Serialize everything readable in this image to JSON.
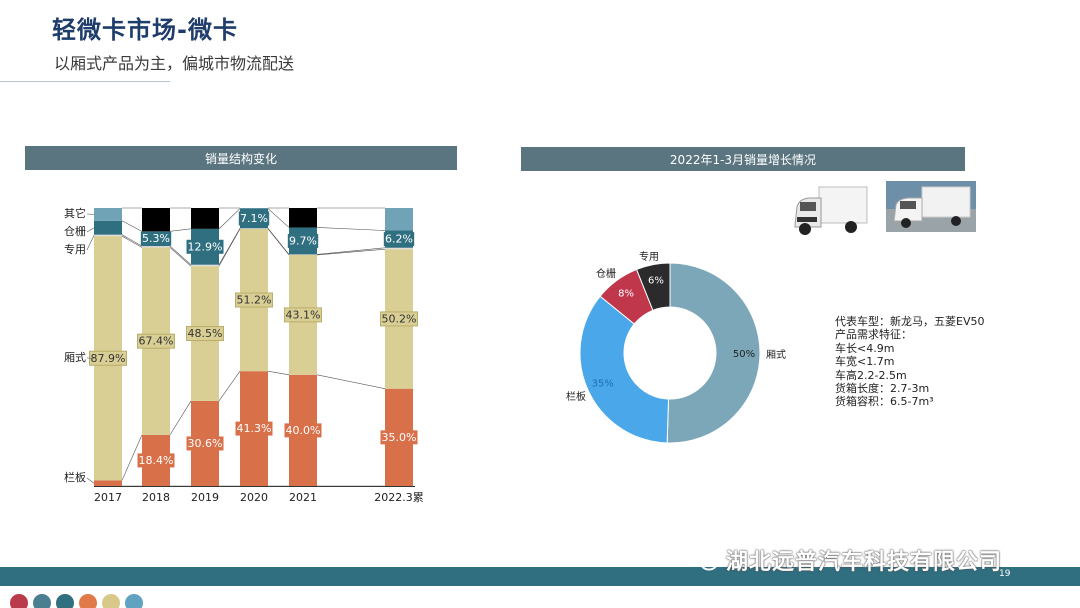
{
  "header": {
    "title": "轻微卡市场-微卡",
    "subtitle": "以厢式产品为主，偏城市物流配送"
  },
  "left_panel": {
    "header": "销量结构变化"
  },
  "right_panel": {
    "header": "2022年1-3月销量增长情况"
  },
  "info": {
    "lines": [
      "代表车型：新龙马，五菱EV50",
      "产品需求特征：",
      "车长<4.9m",
      "车宽<1.7m",
      "车高2.2-2.5m",
      "货箱长度：2.7-3m",
      "货箱容积：6.5-7m³"
    ]
  },
  "footer": {
    "page_number": "19",
    "watermark": "湖北远普汽车科技有限公司"
  },
  "colors": {
    "title": "#1f3d6b",
    "header_band": "#5b7580",
    "footer_band": "#2f6f80",
    "dots": [
      "#b93a4a",
      "#4a7f92",
      "#2f6f80",
      "#e07a48",
      "#d8c98a",
      "#5fa3c0"
    ]
  },
  "chart_data": [
    {
      "type": "bar",
      "stacked": true,
      "normalized": true,
      "title": "销量结构变化",
      "categories": [
        "2017",
        "2018",
        "2019",
        "2020",
        "2021",
        "2022.3累"
      ],
      "series": [
        {
          "name": "栏板",
          "color": "#d8704a",
          "values": [
            2.0,
            18.4,
            30.6,
            41.3,
            40.0,
            35.0
          ],
          "labels": [
            "",
            "18.4%",
            "30.6%",
            "41.3%",
            "40.0%",
            "35.0%"
          ]
        },
        {
          "name": "厢式",
          "color": "#d9cf95",
          "values": [
            87.9,
            67.4,
            48.5,
            51.2,
            43.1,
            50.2
          ],
          "labels": [
            "87.9%",
            "67.4%",
            "48.5%",
            "51.2%",
            "43.1%",
            "50.2%"
          ]
        },
        {
          "name": "专用",
          "color": "#dedede",
          "values": [
            0.5,
            0.5,
            0.5,
            0.2,
            0.2,
            0.5
          ],
          "labels": [
            "",
            "",
            "",
            "",
            "",
            ""
          ]
        },
        {
          "name": "仓栅",
          "color": "#2f6f80",
          "values": [
            5.0,
            5.3,
            12.9,
            7.1,
            9.7,
            6.2
          ],
          "labels": [
            "",
            "5.3%",
            "12.9%",
            "7.1%",
            "9.7%",
            "6.2%"
          ]
        },
        {
          "name": "其它",
          "color": "#6fa3b5",
          "values": [
            4.6,
            8.4,
            7.5,
            0.2,
            7.0,
            8.1
          ],
          "labels": [
            "",
            "",
            "",
            "",
            "",
            ""
          ]
        }
      ],
      "other_colors": [
        "#6fa3b5",
        "#000000",
        "#000000",
        "#6fa3b5",
        "#000000",
        "#6fa3b5"
      ],
      "ylim": [
        0,
        100
      ],
      "legend": "left"
    },
    {
      "type": "pie",
      "donut": true,
      "title": "2022年1-3月销量增长情况",
      "slices": [
        {
          "name": "厢式",
          "value": 50,
          "label": "50%",
          "color": "#7ba7b8"
        },
        {
          "name": "栏板",
          "value": 35,
          "label": "35%",
          "color": "#4aa8ea"
        },
        {
          "name": "仓栅",
          "value": 8,
          "label": "8%",
          "color": "#c0364a"
        },
        {
          "name": "专用",
          "value": 6,
          "label": "6%",
          "color": "#2b2b2b"
        }
      ]
    }
  ]
}
